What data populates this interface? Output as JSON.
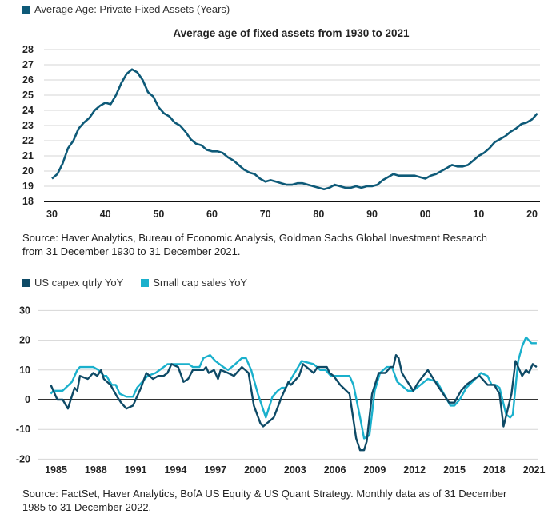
{
  "chart_data": [
    {
      "type": "line",
      "legend": [
        {
          "name": "Average Age: Private Fixed Assets (Years)",
          "color": "#0e5a78"
        }
      ],
      "title": "Average age of fixed assets from 1930 to 2021",
      "xlabel": "",
      "ylabel": "",
      "ylim": [
        18,
        28
      ],
      "yticks": [
        "28",
        "27",
        "26",
        "25",
        "24",
        "23",
        "22",
        "21",
        "20",
        "19",
        "18"
      ],
      "xticks": [
        "30",
        "40",
        "50",
        "60",
        "70",
        "80",
        "90",
        "00",
        "10",
        "20"
      ],
      "xlim": [
        1930,
        2021
      ],
      "grid": true,
      "series": [
        {
          "name": "Average Age: Private Fixed Assets (Years)",
          "color": "#0e5a78",
          "x_start": 1930,
          "values": [
            19.5,
            19.8,
            20.5,
            21.5,
            22.0,
            22.8,
            23.2,
            23.5,
            24.0,
            24.3,
            24.5,
            24.4,
            25.0,
            25.8,
            26.4,
            26.7,
            26.5,
            26.0,
            25.2,
            24.9,
            24.2,
            23.8,
            23.6,
            23.2,
            23.0,
            22.6,
            22.1,
            21.8,
            21.7,
            21.4,
            21.3,
            21.3,
            21.2,
            20.9,
            20.7,
            20.4,
            20.1,
            19.9,
            19.8,
            19.5,
            19.3,
            19.4,
            19.3,
            19.2,
            19.1,
            19.1,
            19.2,
            19.2,
            19.1,
            19.0,
            18.9,
            18.8,
            18.9,
            19.1,
            19.0,
            18.9,
            18.9,
            19.0,
            18.9,
            19.0,
            19.0,
            19.1,
            19.4,
            19.6,
            19.8,
            19.7,
            19.7,
            19.7,
            19.7,
            19.6,
            19.5,
            19.7,
            19.8,
            20.0,
            20.2,
            20.4,
            20.3,
            20.3,
            20.4,
            20.7,
            21.0,
            21.2,
            21.5,
            21.9,
            22.1,
            22.3,
            22.6,
            22.8,
            23.1,
            23.2,
            23.4,
            23.8
          ]
        }
      ],
      "source": [
        "Source: Haver Analytics, Bureau of Economic Analysis, Goldman Sachs Global Investment Research",
        "from 31 December 1930 to 31 December 2021."
      ]
    },
    {
      "type": "line",
      "legend_position": "top-left",
      "ylim": [
        -20,
        30
      ],
      "yticks": [
        "30",
        "20",
        "10",
        "0",
        "-10",
        "-20"
      ],
      "xticks": [
        "1985",
        "1988",
        "1991",
        "1994",
        "1997",
        "2000",
        "2003",
        "2006",
        "2009",
        "2012",
        "2015",
        "2018",
        "2021"
      ],
      "grid": true,
      "series": [
        {
          "name": "US capex qtrly YoY",
          "color": "#0e4a66",
          "points": [
            [
              1984.6,
              5
            ],
            [
              1985.1,
              0
            ],
            [
              1985.5,
              0
            ],
            [
              1985.9,
              -3
            ],
            [
              1986.4,
              4
            ],
            [
              1986.6,
              3
            ],
            [
              1986.8,
              8
            ],
            [
              1987.4,
              7
            ],
            [
              1987.8,
              9
            ],
            [
              1988.1,
              8
            ],
            [
              1988.4,
              10
            ],
            [
              1988.6,
              7
            ],
            [
              1989.1,
              5
            ],
            [
              1989.6,
              1
            ],
            [
              1989.9,
              -1
            ],
            [
              1990.3,
              -3
            ],
            [
              1990.8,
              -2
            ],
            [
              1991.4,
              4
            ],
            [
              1991.8,
              9
            ],
            [
              1992.3,
              7
            ],
            [
              1992.7,
              8
            ],
            [
              1993.1,
              8
            ],
            [
              1993.4,
              9
            ],
            [
              1993.7,
              12
            ],
            [
              1994.2,
              11
            ],
            [
              1994.6,
              6
            ],
            [
              1994.95,
              7
            ],
            [
              1995.3,
              10
            ],
            [
              1996.1,
              10
            ],
            [
              1996.3,
              11
            ],
            [
              1996.5,
              9
            ],
            [
              1996.9,
              10
            ],
            [
              1997.2,
              7
            ],
            [
              1997.4,
              10
            ],
            [
              1997.95,
              9
            ],
            [
              1998.4,
              8
            ],
            [
              1999.0,
              11
            ],
            [
              1999.5,
              9
            ],
            [
              1999.9,
              -2
            ],
            [
              2000.4,
              -8
            ],
            [
              2000.6,
              -9
            ],
            [
              2001.4,
              -6
            ],
            [
              2002.0,
              1
            ],
            [
              2002.5,
              6
            ],
            [
              2002.7,
              5
            ],
            [
              2003.3,
              8
            ],
            [
              2003.6,
              12
            ],
            [
              2004.4,
              9
            ],
            [
              2004.7,
              11
            ],
            [
              2005.4,
              11
            ],
            [
              2005.6,
              9
            ],
            [
              2005.9,
              8
            ],
            [
              2006.4,
              5
            ],
            [
              2007.1,
              2
            ],
            [
              2007.6,
              -13
            ],
            [
              2007.9,
              -17
            ],
            [
              2008.2,
              -17
            ],
            [
              2008.4,
              -14
            ],
            [
              2008.8,
              2
            ],
            [
              2009.3,
              9
            ],
            [
              2009.8,
              9
            ],
            [
              2010.2,
              11
            ],
            [
              2010.4,
              11
            ],
            [
              2010.6,
              15
            ],
            [
              2010.8,
              14
            ],
            [
              2011.05,
              9
            ],
            [
              2011.9,
              3
            ],
            [
              2012.3,
              6
            ],
            [
              2013.0,
              10
            ],
            [
              2013.7,
              5
            ],
            [
              2014.6,
              -1
            ],
            [
              2015.0,
              -1
            ],
            [
              2015.5,
              3
            ],
            [
              2015.9,
              5
            ],
            [
              2016.5,
              7
            ],
            [
              2016.9,
              8
            ],
            [
              2017.5,
              5
            ],
            [
              2018.0,
              5
            ],
            [
              2018.4,
              2
            ],
            [
              2018.7,
              -9
            ],
            [
              2019.3,
              2
            ],
            [
              2019.6,
              13
            ],
            [
              2020.1,
              8
            ],
            [
              2020.4,
              10
            ],
            [
              2020.6,
              9
            ],
            [
              2020.9,
              12
            ],
            [
              2021.2,
              11
            ]
          ]
        },
        {
          "name": "Small cap sales YoY",
          "color": "#1ab0cc",
          "points": [
            [
              1984.6,
              2
            ],
            [
              1984.8,
              3
            ],
            [
              1985.5,
              3
            ],
            [
              1986.2,
              6
            ],
            [
              1986.6,
              10
            ],
            [
              1986.8,
              11
            ],
            [
              1987.8,
              11
            ],
            [
              1988.2,
              10
            ],
            [
              1988.6,
              8
            ],
            [
              1988.8,
              8
            ],
            [
              1989.2,
              5
            ],
            [
              1989.5,
              5
            ],
            [
              1989.8,
              2
            ],
            [
              1990.3,
              1
            ],
            [
              1990.8,
              1
            ],
            [
              1991.1,
              4
            ],
            [
              1991.5,
              6
            ],
            [
              1991.9,
              8
            ],
            [
              1992.5,
              9
            ],
            [
              1993.1,
              11
            ],
            [
              1993.4,
              12
            ],
            [
              1995.0,
              12
            ],
            [
              1995.3,
              11
            ],
            [
              1995.8,
              11
            ],
            [
              1996.1,
              14
            ],
            [
              1996.6,
              15
            ],
            [
              1997.0,
              13
            ],
            [
              1997.6,
              11
            ],
            [
              1997.95,
              10
            ],
            [
              1998.5,
              12
            ],
            [
              1999.0,
              14
            ],
            [
              1999.3,
              14
            ],
            [
              1999.7,
              10
            ],
            [
              2000.2,
              2
            ],
            [
              2000.8,
              -6
            ],
            [
              2001.3,
              1
            ],
            [
              2001.7,
              3
            ],
            [
              2002.0,
              4
            ],
            [
              2002.3,
              4
            ],
            [
              2003.1,
              10
            ],
            [
              2003.5,
              13
            ],
            [
              2004.4,
              12
            ],
            [
              2004.9,
              10
            ],
            [
              2005.3,
              10
            ],
            [
              2005.7,
              8
            ],
            [
              2007.1,
              8
            ],
            [
              2007.4,
              5
            ],
            [
              2007.9,
              -6
            ],
            [
              2008.2,
              -13
            ],
            [
              2008.6,
              -12
            ],
            [
              2009.0,
              3
            ],
            [
              2009.4,
              9
            ],
            [
              2009.9,
              11
            ],
            [
              2010.3,
              11
            ],
            [
              2010.7,
              6
            ],
            [
              2011.5,
              3
            ],
            [
              2011.9,
              3
            ],
            [
              2013.0,
              7
            ],
            [
              2013.7,
              6
            ],
            [
              2014.2,
              2
            ],
            [
              2014.7,
              -2
            ],
            [
              2015.0,
              -2
            ],
            [
              2015.4,
              0
            ],
            [
              2015.9,
              4
            ],
            [
              2016.8,
              8
            ],
            [
              2017.0,
              9
            ],
            [
              2017.5,
              8
            ],
            [
              2017.8,
              5
            ],
            [
              2018.1,
              5
            ],
            [
              2018.4,
              4
            ],
            [
              2018.9,
              -5
            ],
            [
              2019.2,
              -6
            ],
            [
              2019.4,
              -5
            ],
            [
              2019.8,
              13
            ],
            [
              2020.1,
              18
            ],
            [
              2020.4,
              21
            ],
            [
              2020.8,
              19
            ],
            [
              2021.2,
              19
            ]
          ]
        }
      ],
      "source": [
        "Source: FactSet, Haver Analytics, BofA US Equity & US Quant Strategy. Monthly data as of 31 December",
        "1985 to 31 December 2022."
      ]
    }
  ]
}
